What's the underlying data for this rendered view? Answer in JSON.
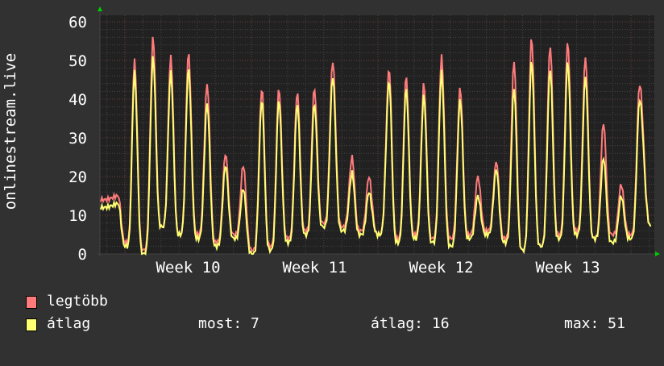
{
  "chart_data": {
    "type": "line",
    "ylabel": "onlinestream.live",
    "ylim": [
      0,
      60
    ],
    "yticks": [
      "0",
      "10",
      "20",
      "30",
      "40",
      "50",
      "60"
    ],
    "x_unit": "days from start of Week 10",
    "xlim": [
      -1.38,
      29.2
    ],
    "xticks": [
      {
        "label": "Week 10",
        "day": 3.5
      },
      {
        "label": "Week 11",
        "day": 10.5
      },
      {
        "label": "Week 12",
        "day": 17.5
      },
      {
        "label": "Week 13",
        "day": 24.5
      }
    ],
    "grid": true,
    "peak_days": [
      -0.36,
      0.53,
      1.56,
      2.54,
      3.52,
      4.55,
      5.57,
      6.55,
      7.58,
      8.52,
      9.54,
      10.48,
      11.5,
      12.57,
      13.5,
      14.62,
      15.56,
      16.54,
      17.52,
      18.55,
      19.53,
      20.55,
      21.53,
      22.5,
      23.53,
      24.5,
      25.48,
      26.48,
      27.46,
      28.48
    ],
    "series": [
      {
        "name": "legtöbb",
        "color": "#ff7b7b",
        "peaks": [
          15,
          50,
          56,
          51,
          52,
          44,
          26,
          23,
          43,
          43,
          42,
          43,
          50,
          25,
          20,
          48,
          46,
          44,
          51,
          43,
          20,
          24,
          50,
          56,
          54,
          55,
          51,
          34,
          18,
          44
        ],
        "troughs": [
          14,
          3,
          1,
          7,
          5,
          5,
          3,
          5,
          1,
          2,
          4,
          6,
          8,
          7,
          6,
          5,
          4,
          5,
          4,
          4,
          5,
          6,
          4,
          1,
          2,
          5,
          6,
          4,
          5,
          5,
          7
        ]
      },
      {
        "name": "átlag",
        "color": "#ffff73",
        "peaks": [
          13,
          47,
          51,
          47,
          48,
          39,
          23,
          17,
          40,
          40,
          39,
          39,
          46,
          21,
          16,
          45,
          43,
          41,
          47,
          40,
          15,
          22,
          43,
          50,
          48,
          50,
          46,
          25,
          15,
          40
        ],
        "troughs": [
          12,
          2,
          0,
          7,
          5,
          4,
          2,
          4,
          0,
          1,
          3,
          5,
          7,
          6,
          5,
          5,
          3,
          4,
          3,
          2,
          4,
          5,
          3,
          1,
          2,
          4,
          5,
          4,
          3,
          4,
          7
        ]
      }
    ]
  },
  "legend": [
    {
      "label": "legtöbb",
      "color": "#ff7b7b"
    },
    {
      "label": "átlag",
      "color": "#ffff73"
    }
  ],
  "stats": {
    "now": "most: 7",
    "avg": "átlag: 16",
    "max": "max: 51"
  }
}
